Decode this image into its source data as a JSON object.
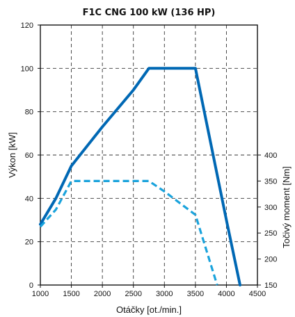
{
  "chart_data": {
    "type": "line",
    "title": "F1C CNG 100 kW (136 HP)",
    "xlabel": "Otáčky [ot./min.]",
    "ylabel_left": "Výkon [kW]",
    "ylabel_right": "Točivý moment [Nm]",
    "xlim": [
      1000,
      4500
    ],
    "ylim_left": [
      0,
      120
    ],
    "ylim_right": [
      150,
      400
    ],
    "x_ticks": [
      1000,
      1500,
      2000,
      2500,
      3000,
      3500,
      4000,
      4500
    ],
    "y_ticks_left": [
      0,
      20,
      40,
      60,
      80,
      100,
      120
    ],
    "y_ticks_right": [
      150,
      200,
      250,
      300,
      350,
      400
    ],
    "grid": true,
    "series": [
      {
        "axis": "left",
        "style": "solid",
        "color": "#0068b4",
        "points": [
          [
            1000,
            28
          ],
          [
            1250,
            40
          ],
          [
            1500,
            55
          ],
          [
            2000,
            73
          ],
          [
            2500,
            90
          ],
          [
            2750,
            100
          ],
          [
            3500,
            100
          ],
          [
            4000,
            30
          ],
          [
            4220,
            0
          ]
        ]
      },
      {
        "axis": "right",
        "style": "dashed",
        "color": "#1aa3dc",
        "points": [
          [
            1000,
            262
          ],
          [
            1250,
            295
          ],
          [
            1500,
            350
          ],
          [
            2000,
            350
          ],
          [
            2750,
            350
          ],
          [
            3000,
            330
          ],
          [
            3500,
            285
          ],
          [
            3850,
            150
          ]
        ]
      }
    ],
    "colors": {
      "power": "#0068b4",
      "torque": "#1aa3dc",
      "grid": "#333333",
      "frame": "#111111"
    }
  }
}
